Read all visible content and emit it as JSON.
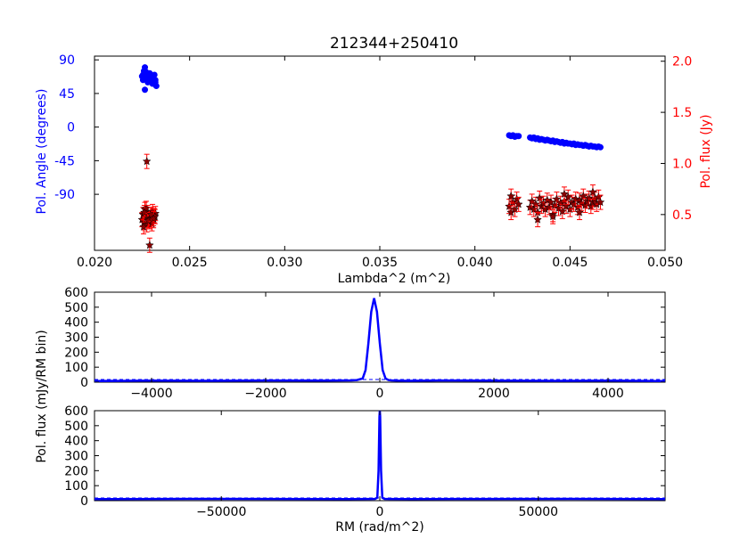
{
  "chart_data": [
    {
      "type": "scatter",
      "title": "212344+250410",
      "xlabel": "Lambda^2 (m^2)",
      "ylabel_left": "Pol. Angle (degrees)",
      "ylabel_right": "Pol. flux (Jy)",
      "xlim": [
        0.02,
        0.05
      ],
      "ylim_left": [
        -165,
        95
      ],
      "ylim_right": [
        0.15,
        2.05
      ],
      "x_ticks": [
        "0.020",
        "0.025",
        "0.030",
        "0.035",
        "0.040",
        "0.045",
        "0.050"
      ],
      "y_left_ticks": [
        "90",
        "45",
        "0",
        "-45",
        "-90"
      ],
      "y_right_ticks": [
        "2.0",
        "1.5",
        "1.0",
        "0.5"
      ],
      "colors": {
        "angle": "#0000ff",
        "flux": "#8b0000",
        "flux_err": "#ff0000",
        "right_axis": "#ff0000",
        "left_axis": "#0000ff"
      },
      "series": [
        {
          "axis": "left",
          "marker": "circle",
          "x": [
            0.0225,
            0.02255,
            0.0226,
            0.02265,
            0.0227,
            0.02275,
            0.0228,
            0.02285,
            0.0229,
            0.02295,
            0.023,
            0.02305,
            0.0231,
            0.02315,
            0.0232,
            0.02325,
            0.02255,
            0.0227,
            0.0228,
            0.0229,
            0.023,
            0.0231,
            0.0232,
            0.02265,
            0.0418,
            0.0419,
            0.042,
            0.0421,
            0.0422,
            0.0423,
            0.0429,
            0.043,
            0.0431,
            0.0432,
            0.0433,
            0.0434,
            0.0435,
            0.0436,
            0.0437,
            0.0438,
            0.0439,
            0.044,
            0.0441,
            0.0442,
            0.0443,
            0.0444,
            0.0445,
            0.0446,
            0.0447,
            0.0448,
            0.0449,
            0.045,
            0.0451,
            0.0452,
            0.0453,
            0.0454,
            0.0455,
            0.0456,
            0.0457,
            0.0458,
            0.0459,
            0.046,
            0.0461,
            0.0462,
            0.0463,
            0.0464,
            0.0465,
            0.0466
          ],
          "y": [
            68,
            63,
            75,
            80,
            64,
            70,
            60,
            66,
            72,
            62,
            68,
            58,
            65,
            70,
            63,
            55,
            70,
            74,
            67,
            61,
            69,
            66,
            60,
            50,
            -11,
            -12,
            -11,
            -13,
            -12,
            -12,
            -14,
            -15,
            -14,
            -16,
            -15,
            -17,
            -16,
            -17,
            -18,
            -17,
            -18,
            -19,
            -18,
            -20,
            -19,
            -20,
            -21,
            -20,
            -22,
            -21,
            -22,
            -22,
            -23,
            -22,
            -24,
            -23,
            -24,
            -24,
            -25,
            -24,
            -25,
            -26,
            -25,
            -26,
            -26,
            -27,
            -26,
            -27
          ]
        },
        {
          "axis": "right",
          "marker": "star",
          "x": [
            0.0225,
            0.02255,
            0.0226,
            0.02265,
            0.0227,
            0.02275,
            0.0228,
            0.02285,
            0.0229,
            0.02295,
            0.023,
            0.02305,
            0.0231,
            0.02315,
            0.0232,
            0.02258,
            0.02272,
            0.02288,
            0.02302,
            0.02318,
            0.02262,
            0.02282,
            0.02298,
            0.0231,
            0.02275,
            0.0229,
            0.0418,
            0.0419,
            0.042,
            0.0421,
            0.0422,
            0.0423,
            0.0429,
            0.043,
            0.0431,
            0.0432,
            0.0433,
            0.0434,
            0.0435,
            0.0436,
            0.0437,
            0.0438,
            0.0439,
            0.044,
            0.0441,
            0.0442,
            0.0443,
            0.0444,
            0.0445,
            0.0446,
            0.0447,
            0.0448,
            0.0449,
            0.045,
            0.0451,
            0.0452,
            0.0453,
            0.0454,
            0.0455,
            0.0456,
            0.0457,
            0.0458,
            0.0459,
            0.046,
            0.0461,
            0.0462,
            0.0463,
            0.0464,
            0.0465,
            0.0466,
            0.0419,
            0.0433,
            0.0441,
            0.0447,
            0.0455,
            0.0462
          ],
          "y": [
            0.45,
            0.5,
            0.42,
            0.55,
            0.48,
            0.4,
            0.52,
            0.46,
            0.43,
            0.5,
            0.47,
            0.53,
            0.44,
            0.49,
            0.51,
            0.38,
            0.56,
            0.45,
            0.41,
            0.48,
            0.52,
            0.44,
            0.5,
            0.46,
            1.02,
            0.2,
            0.58,
            0.52,
            0.62,
            0.55,
            0.65,
            0.6,
            0.57,
            0.63,
            0.55,
            0.6,
            0.52,
            0.66,
            0.58,
            0.61,
            0.55,
            0.64,
            0.57,
            0.62,
            0.5,
            0.59,
            0.65,
            0.56,
            0.61,
            0.53,
            0.63,
            0.58,
            0.67,
            0.55,
            0.62,
            0.6,
            0.65,
            0.57,
            0.64,
            0.61,
            0.68,
            0.59,
            0.63,
            0.66,
            0.58,
            0.62,
            0.65,
            0.6,
            0.67,
            0.62,
            0.68,
            0.45,
            0.48,
            0.7,
            0.52,
            0.72
          ]
        }
      ]
    },
    {
      "type": "line",
      "xlim": [
        -5000,
        5000
      ],
      "ylim": [
        0,
        600
      ],
      "x_ticks": [
        "-4000",
        "-2000",
        "0",
        "2000",
        "4000"
      ],
      "y_ticks": [
        "600",
        "500",
        "400",
        "300",
        "200",
        "100",
        "0"
      ],
      "colors": {
        "line": "#0000ff"
      },
      "series": [
        {
          "x": [
            -5000,
            -4000,
            -3000,
            -2000,
            -1000,
            -500,
            -400,
            -300,
            -250,
            -200,
            -150,
            -100,
            -50,
            0,
            50,
            100,
            150,
            200,
            300,
            500,
            1000,
            2000,
            3000,
            4000,
            5000
          ],
          "y": [
            8,
            10,
            9,
            11,
            10,
            12,
            14,
            25,
            80,
            260,
            470,
            560,
            470,
            260,
            80,
            25,
            14,
            12,
            10,
            9,
            11,
            10,
            9,
            10,
            8
          ]
        }
      ]
    },
    {
      "type": "line",
      "xlabel": "RM (rad/m^2)",
      "xlim": [
        -90000,
        90000
      ],
      "ylim": [
        0,
        600
      ],
      "x_ticks": [
        "-50000",
        "0",
        "50000"
      ],
      "y_ticks": [
        "600",
        "500",
        "400",
        "300",
        "200",
        "100",
        "0"
      ],
      "colors": {
        "line": "#0000ff"
      },
      "series": [
        {
          "x": [
            -90000,
            -60000,
            -30000,
            -10000,
            -3000,
            -1500,
            -800,
            -400,
            -100,
            0,
            100,
            400,
            800,
            1500,
            3000,
            10000,
            30000,
            60000,
            90000
          ],
          "y": [
            10,
            12,
            11,
            10,
            11,
            12,
            20,
            200,
            560,
            600,
            560,
            200,
            20,
            12,
            11,
            10,
            11,
            12,
            10
          ]
        }
      ]
    }
  ],
  "shared_ylabel": "Pol. flux (mJy/RM bin)"
}
